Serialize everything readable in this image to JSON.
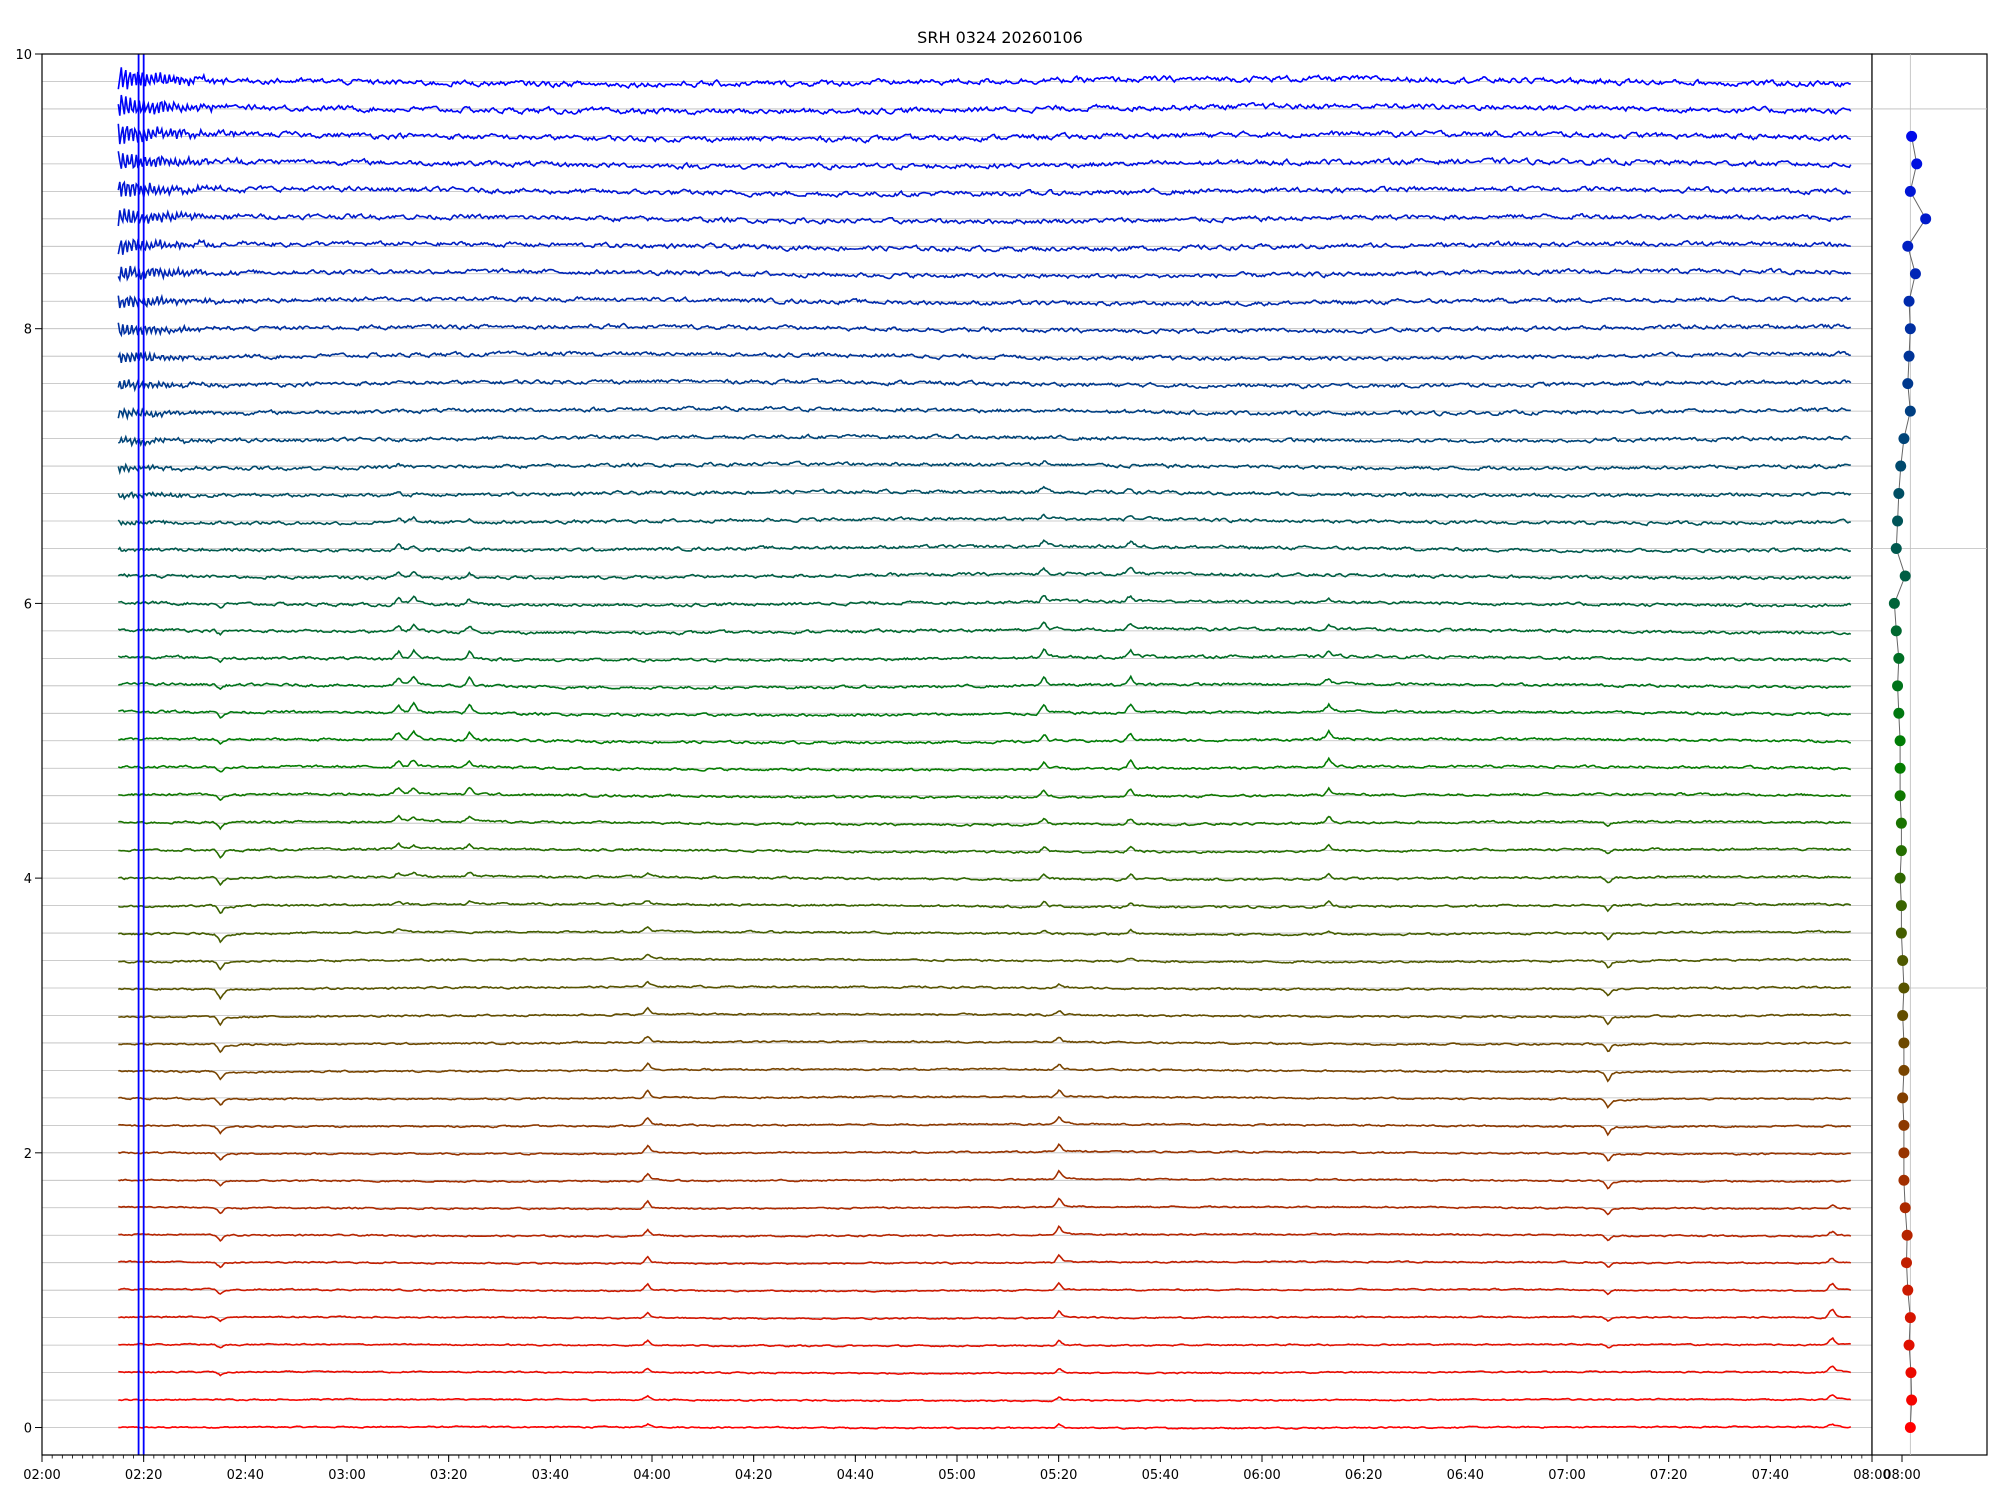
{
  "chart_data": {
    "type": "line",
    "title": "SRH 0324 20260106",
    "xlabel": "",
    "ylabel": "",
    "x_range": [
      "02:00",
      "08:00"
    ],
    "x_ticks": [
      "02:00",
      "02:20",
      "02:40",
      "03:00",
      "03:20",
      "03:40",
      "04:00",
      "04:20",
      "04:40",
      "05:00",
      "05:20",
      "05:40",
      "06:00",
      "06:20",
      "06:40",
      "07:00",
      "07:20",
      "07:40",
      "08:00"
    ],
    "ylim": [
      -0.2,
      10
    ],
    "y_ticks": [
      "0",
      "2",
      "4",
      "6",
      "8",
      "10"
    ],
    "grid": true,
    "legend": "none",
    "series_count": 50,
    "series_spacing": 0.2,
    "data_start": "02:15",
    "data_end": "07:56",
    "color_top": "#0000ff",
    "color_middle": "#008000",
    "color_bottom": "#ff0000",
    "vertical_markers": [
      "02:19",
      "02:20"
    ],
    "events": [
      {
        "time": "02:35",
        "sign": -1,
        "bands": "0.4-6.0"
      },
      {
        "time": "03:10",
        "sign": 1,
        "bands": "3.5-7.0"
      },
      {
        "time": "03:13",
        "sign": 1,
        "bands": "4.0-6.8"
      },
      {
        "time": "03:24",
        "sign": 1,
        "bands": "3.8-6.8"
      },
      {
        "time": "03:59",
        "sign": 1,
        "bands": "0.0-4.0"
      },
      {
        "time": "05:17",
        "sign": 1,
        "bands": "3.5-7.0"
      },
      {
        "time": "05:20",
        "sign": 1,
        "bands": "0.0-3.2"
      },
      {
        "time": "05:34",
        "sign": 1,
        "bands": "3.4-6.9"
      },
      {
        "time": "06:13",
        "sign": 1,
        "bands": "3.6-6.0"
      },
      {
        "time": "07:08",
        "sign": -1,
        "bands": "0.6-4.6"
      },
      {
        "time": "07:52",
        "sign": 1,
        "bands": "0.0-1.6"
      }
    ],
    "side_panel": {
      "x_range": [
        -0.6,
        1.2
      ],
      "points_y": [
        0.0,
        0.2,
        0.4,
        0.6,
        0.8,
        1.0,
        1.2,
        1.4,
        1.6,
        1.8,
        2.0,
        2.2,
        2.4,
        2.6,
        2.8,
        3.0,
        3.2,
        3.4,
        3.6,
        3.8,
        4.0,
        4.2,
        4.4,
        4.6,
        4.8,
        5.0,
        5.2,
        5.4,
        5.6,
        5.8,
        6.0,
        6.2,
        6.4,
        6.6,
        6.8,
        7.0,
        7.2,
        7.4,
        7.6,
        7.8,
        8.0,
        8.2,
        8.4,
        8.6,
        8.8,
        9.0,
        9.2,
        9.4
      ],
      "points_x": [
        0.0,
        0.02,
        0.01,
        -0.02,
        0.0,
        -0.04,
        -0.06,
        -0.05,
        -0.08,
        -0.1,
        -0.1,
        -0.1,
        -0.12,
        -0.1,
        -0.1,
        -0.12,
        -0.1,
        -0.12,
        -0.14,
        -0.14,
        -0.16,
        -0.14,
        -0.14,
        -0.16,
        -0.16,
        -0.16,
        -0.18,
        -0.2,
        -0.18,
        -0.22,
        -0.25,
        -0.08,
        -0.22,
        -0.2,
        -0.18,
        -0.15,
        -0.1,
        0.0,
        -0.04,
        -0.02,
        0.0,
        -0.02,
        0.08,
        -0.04,
        0.24,
        0.0,
        0.1,
        0.02
      ]
    }
  }
}
